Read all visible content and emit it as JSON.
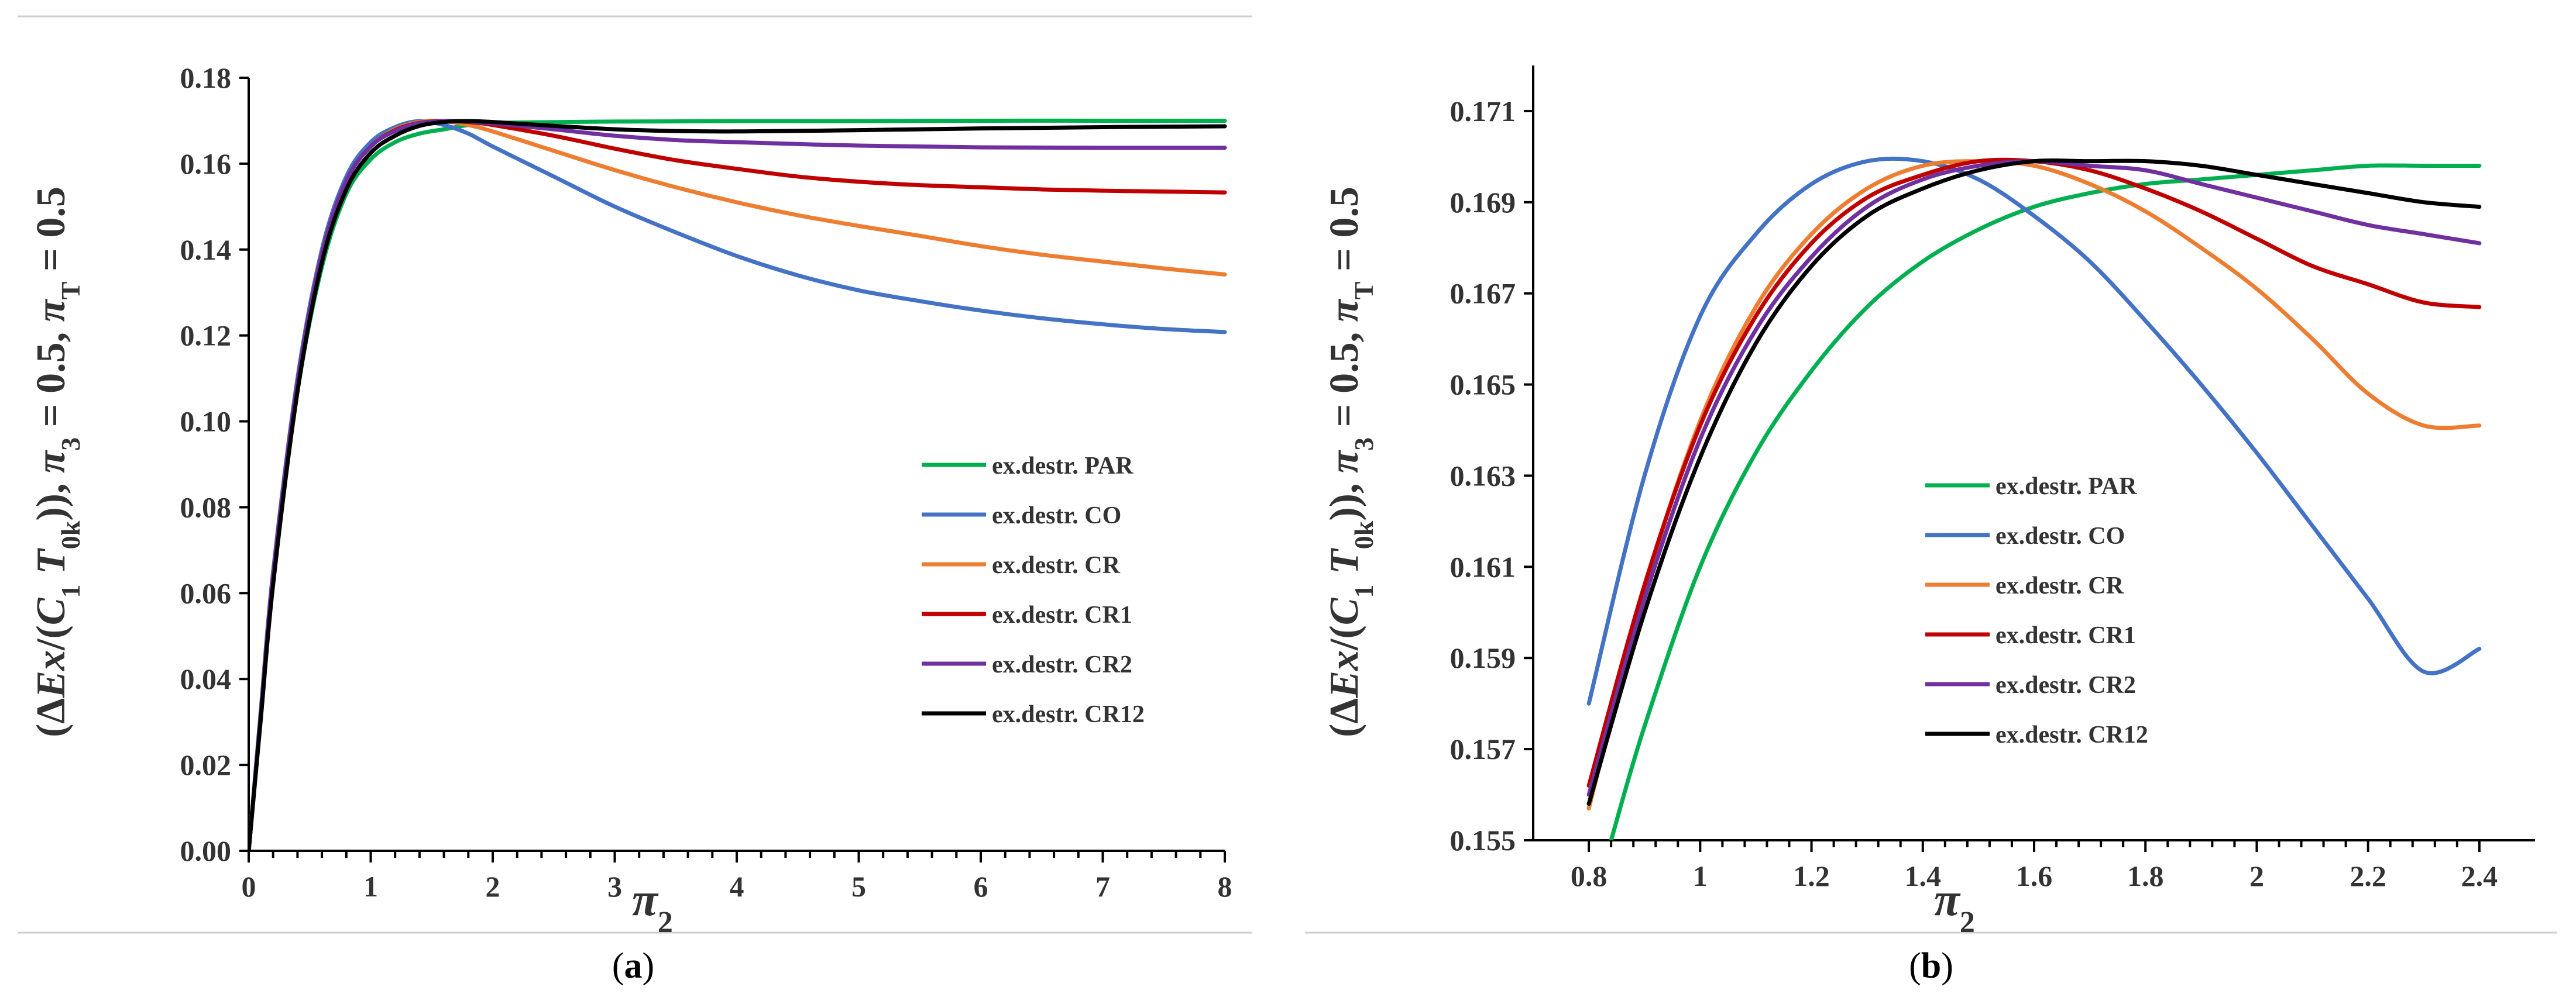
{
  "chart_data": [
    {
      "type": "line",
      "caption_letter": "a",
      "xlabel": "π2",
      "ylabel": "(ΔEx/(C1 T0k)), π3 = 0.5, πT = 0.5",
      "xlim": [
        0,
        8
      ],
      "ylim": [
        0,
        0.18
      ],
      "xticks": [
        0,
        1,
        2,
        3,
        4,
        5,
        6,
        7,
        8
      ],
      "yticks": [
        0.0,
        0.02,
        0.04,
        0.06,
        0.08,
        0.1,
        0.12,
        0.14,
        0.16,
        0.18
      ],
      "series": [
        {
          "name": "ex.destr. PAR",
          "color": "#00B050",
          "x": [
            0,
            0.1,
            0.2,
            0.4,
            0.6,
            0.8,
            1.0,
            1.2,
            1.4,
            1.6,
            1.8,
            2,
            3,
            4,
            5,
            6,
            7,
            8
          ],
          "y": [
            0,
            0.032,
            0.063,
            0.107,
            0.136,
            0.153,
            0.161,
            0.165,
            0.167,
            0.168,
            0.169,
            0.1695,
            0.1698,
            0.1699,
            0.1699,
            0.17,
            0.17,
            0.17
          ]
        },
        {
          "name": "ex.destr. CO",
          "color": "#4472C4",
          "x": [
            0,
            0.1,
            0.2,
            0.4,
            0.6,
            0.8,
            1.0,
            1.2,
            1.4,
            1.6,
            1.8,
            2,
            2.5,
            3,
            3.5,
            4,
            4.5,
            5,
            5.5,
            6,
            6.5,
            7,
            7.5,
            8
          ],
          "y": [
            0,
            0.033,
            0.065,
            0.11,
            0.14,
            0.157,
            0.165,
            0.1685,
            0.1699,
            0.169,
            0.167,
            0.164,
            0.157,
            0.15,
            0.144,
            0.1385,
            0.134,
            0.1305,
            0.128,
            0.1258,
            0.124,
            0.1226,
            0.1215,
            0.1208
          ]
        },
        {
          "name": "ex.destr. CR",
          "color": "#ED7D31",
          "x": [
            0,
            0.1,
            0.2,
            0.4,
            0.6,
            0.8,
            1.0,
            1.2,
            1.4,
            1.6,
            1.8,
            2,
            2.5,
            3,
            3.5,
            4,
            4.5,
            5,
            5.5,
            6,
            6.5,
            7,
            7.5,
            8
          ],
          "y": [
            0,
            0.032,
            0.064,
            0.109,
            0.139,
            0.156,
            0.164,
            0.168,
            0.1697,
            0.1699,
            0.169,
            0.1675,
            0.163,
            0.1585,
            0.1545,
            0.151,
            0.148,
            0.1455,
            0.1432,
            0.1408,
            0.1388,
            0.1372,
            0.1356,
            0.1342
          ]
        },
        {
          "name": "ex.destr. CR1",
          "color": "#C00000",
          "x": [
            0,
            0.1,
            0.2,
            0.4,
            0.6,
            0.8,
            1.0,
            1.2,
            1.4,
            1.6,
            1.8,
            2,
            2.5,
            3,
            3.5,
            4,
            4.5,
            5,
            5.5,
            6,
            6.5,
            7,
            7.5,
            8
          ],
          "y": [
            0,
            0.032,
            0.064,
            0.109,
            0.139,
            0.156,
            0.164,
            0.1678,
            0.1695,
            0.1699,
            0.1697,
            0.169,
            0.1665,
            0.1635,
            0.1608,
            0.1588,
            0.157,
            0.1558,
            0.155,
            0.1545,
            0.154,
            0.1537,
            0.1535,
            0.1533
          ]
        },
        {
          "name": "ex.destr. CR2",
          "color": "#7030A0",
          "x": [
            0,
            0.1,
            0.2,
            0.4,
            0.6,
            0.8,
            1.0,
            1.2,
            1.4,
            1.6,
            1.8,
            2,
            2.5,
            3,
            3.5,
            4,
            5,
            6,
            7,
            8
          ],
          "y": [
            0,
            0.032,
            0.064,
            0.109,
            0.139,
            0.156,
            0.164,
            0.1676,
            0.1694,
            0.1699,
            0.1698,
            0.1694,
            0.168,
            0.1665,
            0.1655,
            0.165,
            0.1642,
            0.1638,
            0.1637,
            0.1637
          ]
        },
        {
          "name": "ex.destr. CR12",
          "color": "#000000",
          "x": [
            0,
            0.1,
            0.2,
            0.4,
            0.6,
            0.8,
            1.0,
            1.2,
            1.4,
            1.6,
            1.8,
            2,
            2.5,
            3,
            3.5,
            4,
            5,
            6,
            7,
            8
          ],
          "y": [
            0,
            0.031,
            0.062,
            0.107,
            0.137,
            0.154,
            0.1625,
            0.1665,
            0.1688,
            0.1697,
            0.1699,
            0.1697,
            0.1688,
            0.168,
            0.1676,
            0.1675,
            0.1678,
            0.1682,
            0.1685,
            0.1687
          ]
        }
      ]
    },
    {
      "type": "line",
      "caption_letter": "b",
      "xlabel": "π2",
      "ylabel": "(ΔEx/(C1 T0k)), π3 = 0.5, πT = 0.5",
      "xlim": [
        0.7,
        2.5
      ],
      "ylim": [
        0.155,
        0.172
      ],
      "xticks": [
        0.8,
        1,
        1.2,
        1.4,
        1.6,
        1.8,
        2,
        2.2,
        2.4
      ],
      "yticks": [
        0.155,
        0.157,
        0.159,
        0.161,
        0.163,
        0.165,
        0.167,
        0.169,
        0.171
      ],
      "series": [
        {
          "name": "ex.destr. PAR",
          "color": "#00B050",
          "x": [
            0.84,
            0.9,
            1.0,
            1.1,
            1.2,
            1.3,
            1.4,
            1.5,
            1.6,
            1.7,
            1.8,
            1.9,
            2.0,
            2.1,
            2.2,
            2.3,
            2.4
          ],
          "y": [
            0.155,
            0.1575,
            0.161,
            0.1635,
            0.1653,
            0.1667,
            0.1677,
            0.1684,
            0.1689,
            0.1692,
            0.1694,
            0.1695,
            0.1696,
            0.1697,
            0.1698,
            0.1698,
            0.1698
          ]
        },
        {
          "name": "ex.destr. CO",
          "color": "#4472C4",
          "x": [
            0.8,
            0.9,
            1.0,
            1.1,
            1.2,
            1.3,
            1.4,
            1.5,
            1.6,
            1.7,
            1.8,
            1.9,
            2.0,
            2.1,
            2.2,
            2.3,
            2.4
          ],
          "y": [
            0.158,
            0.163,
            0.1665,
            0.1683,
            0.1694,
            0.1699,
            0.1699,
            0.1695,
            0.1687,
            0.1677,
            0.1664,
            0.165,
            0.1635,
            0.1619,
            0.1603,
            0.1587,
            0.1592
          ]
        },
        {
          "name": "ex.destr. CR",
          "color": "#ED7D31",
          "x": [
            0.8,
            0.9,
            1.0,
            1.1,
            1.2,
            1.3,
            1.4,
            1.5,
            1.6,
            1.7,
            1.8,
            1.9,
            2.0,
            2.1,
            2.2,
            2.3,
            2.4
          ],
          "y": [
            0.1557,
            0.1605,
            0.1642,
            0.1667,
            0.1683,
            0.1693,
            0.1698,
            0.1699,
            0.1698,
            0.1694,
            0.1688,
            0.168,
            0.1671,
            0.166,
            0.1648,
            0.1641,
            0.1641
          ]
        },
        {
          "name": "ex.destr. CR1",
          "color": "#C00000",
          "x": [
            0.8,
            0.9,
            1.0,
            1.1,
            1.2,
            1.3,
            1.4,
            1.5,
            1.6,
            1.7,
            1.8,
            1.9,
            2.0,
            2.1,
            2.2,
            2.3,
            2.4
          ],
          "y": [
            0.1562,
            0.1606,
            0.1641,
            0.1665,
            0.1681,
            0.1691,
            0.1696,
            0.1699,
            0.1699,
            0.1697,
            0.1693,
            0.1688,
            0.1682,
            0.1676,
            0.1672,
            0.1668,
            0.1667
          ]
        },
        {
          "name": "ex.destr. CR2",
          "color": "#7030A0",
          "x": [
            0.8,
            0.9,
            1.0,
            1.1,
            1.2,
            1.3,
            1.4,
            1.5,
            1.6,
            1.7,
            1.8,
            1.9,
            2.0,
            2.1,
            2.2,
            2.3,
            2.4
          ],
          "y": [
            0.156,
            0.1603,
            0.1638,
            0.1662,
            0.1678,
            0.1689,
            0.1695,
            0.1698,
            0.1699,
            0.1698,
            0.1697,
            0.1694,
            0.1691,
            0.1688,
            0.1685,
            0.1683,
            0.1681
          ]
        },
        {
          "name": "ex.destr. CR12",
          "color": "#000000",
          "x": [
            0.8,
            0.9,
            1.0,
            1.1,
            1.2,
            1.3,
            1.4,
            1.5,
            1.6,
            1.7,
            1.8,
            1.9,
            2.0,
            2.1,
            2.2,
            2.3,
            2.4
          ],
          "y": [
            0.1558,
            0.16,
            0.1634,
            0.1659,
            0.1676,
            0.1687,
            0.1693,
            0.1697,
            0.1699,
            0.1699,
            0.1699,
            0.1698,
            0.1696,
            0.1694,
            0.1692,
            0.169,
            0.1689
          ]
        }
      ]
    }
  ]
}
